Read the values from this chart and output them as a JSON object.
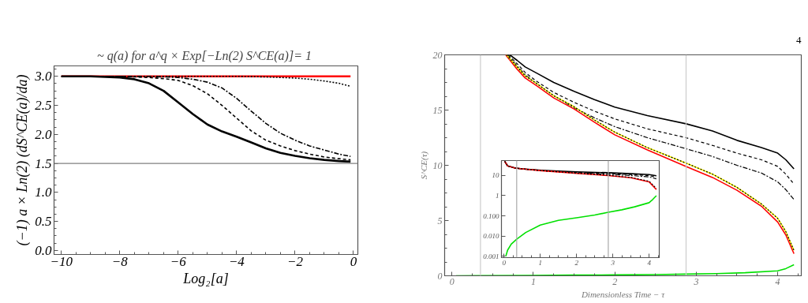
{
  "chart_data": [
    {
      "type": "line",
      "title": "~ q(a) for  a^q × Exp[−Ln(2) S^CE(a)]= 1",
      "xlabel": "Log₂[a]",
      "ylabel": "(−1) a × Ln(2) (dS^CE(a)/da)",
      "xlim": [
        -10.25,
        0.15
      ],
      "ylim": [
        -0.07,
        3.18
      ],
      "xticks": [
        {
          "value": -10,
          "label": "−10"
        },
        {
          "value": -8,
          "label": "−8"
        },
        {
          "value": -6,
          "label": "−6"
        },
        {
          "value": -4,
          "label": "−4"
        },
        {
          "value": -2,
          "label": "−2"
        },
        0
      ],
      "yticks": [
        {
          "value": 0,
          "label": "0.0"
        },
        0.5,
        {
          "value": 1,
          "label": "1.0"
        },
        1.5,
        {
          "value": 2,
          "label": "2.0"
        },
        2.5,
        {
          "value": 3,
          "label": "3.0"
        }
      ],
      "ref_lines": [
        {
          "axis": "y",
          "value": 1.5,
          "color": "#808080"
        }
      ],
      "series": [
        {
          "color": "#ff0000",
          "line_style": "solid",
          "x": [
            -10,
            -0.1
          ],
          "values": [
            3.0,
            3.0
          ]
        },
        {
          "color": "#000000",
          "line_style": "solid",
          "x": [
            -10,
            -9,
            -8,
            -7.5,
            -7,
            -6.5,
            -6,
            -5.5,
            -5,
            -4.5,
            -4,
            -3.5,
            -3,
            -2.5,
            -2,
            -1.5,
            -1,
            -0.5,
            -0.1
          ],
          "values": [
            3.0,
            3.0,
            2.98,
            2.95,
            2.88,
            2.75,
            2.55,
            2.35,
            2.17,
            2.05,
            1.96,
            1.86,
            1.76,
            1.68,
            1.63,
            1.59,
            1.56,
            1.54,
            1.53
          ]
        },
        {
          "color": "#000000",
          "line_style": "dashed",
          "x": [
            -10,
            -8,
            -7,
            -6.5,
            -6,
            -5.5,
            -5,
            -4.5,
            -4,
            -3.5,
            -3,
            -2.5,
            -2,
            -1.5,
            -1,
            -0.5,
            -0.1
          ],
          "values": [
            3.0,
            3.0,
            2.98,
            2.96,
            2.93,
            2.84,
            2.7,
            2.5,
            2.28,
            2.06,
            1.9,
            1.8,
            1.72,
            1.66,
            1.61,
            1.58,
            1.56
          ]
        },
        {
          "color": "#000000",
          "line_style": "dashdot",
          "x": [
            -10,
            -7,
            -6,
            -5.5,
            -5,
            -4.5,
            -4,
            -3.5,
            -3,
            -2.5,
            -2,
            -1.5,
            -1,
            -0.5,
            -0.1
          ],
          "values": [
            3.0,
            3.0,
            2.98,
            2.95,
            2.9,
            2.8,
            2.62,
            2.4,
            2.19,
            2.02,
            1.9,
            1.8,
            1.73,
            1.66,
            1.62
          ]
        },
        {
          "color": "#000000",
          "line_style": "dotted",
          "x": [
            -10,
            -4,
            -3,
            -2,
            -1.5,
            -1,
            -0.5,
            -0.1
          ],
          "values": [
            3.0,
            3.0,
            2.99,
            2.97,
            2.95,
            2.92,
            2.88,
            2.83
          ]
        }
      ]
    },
    {
      "type": "line",
      "xlabel": "Dimensionless Time − τ",
      "ylabel": "S^CE(τ)",
      "annotations": [
        "4"
      ],
      "xlim": [
        -0.09,
        4.29
      ],
      "ylim": [
        0,
        20
      ],
      "xticks": [
        0,
        1,
        2,
        3,
        4
      ],
      "yticks": [
        0,
        5,
        10,
        15,
        20
      ],
      "ref_lines": [
        {
          "axis": "x",
          "value": 0.35,
          "color": "#cccccc"
        },
        {
          "axis": "x",
          "value": 2.875,
          "color": "#cccccc"
        }
      ],
      "series": [
        {
          "color": "#000000",
          "line_style": "solid",
          "x": [
            0.71,
            0.8,
            0.9,
            1.04,
            1.25,
            1.5,
            1.75,
            2,
            2.4,
            2.875,
            3.2,
            3.5,
            3.8,
            4,
            4.1,
            4.2
          ],
          "values": [
            20,
            19.5,
            18.9,
            18.35,
            17.5,
            16.7,
            15.95,
            15.27,
            14.5,
            13.76,
            13.1,
            12.26,
            11.6,
            11.1,
            10.5,
            9.68
          ]
        },
        {
          "color": "#000000",
          "line_style": "dashed",
          "x": [
            0.69,
            0.8,
            0.9,
            1.04,
            1.25,
            1.5,
            1.75,
            2,
            2.4,
            2.875,
            3.2,
            3.5,
            3.8,
            4,
            4.1,
            4.2
          ],
          "values": [
            20,
            19.2,
            18.4,
            17.6,
            16.6,
            15.7,
            14.9,
            14.2,
            13.3,
            12.5,
            11.8,
            11.1,
            10.5,
            9.9,
            9.2,
            8.3
          ]
        },
        {
          "color": "#000000",
          "line_style": "dashdot",
          "x": [
            0.68,
            0.8,
            0.9,
            1.04,
            1.25,
            1.5,
            1.75,
            2,
            2.4,
            2.875,
            3.2,
            3.5,
            3.8,
            4,
            4.1,
            4.2
          ],
          "values": [
            20,
            19.0,
            18.2,
            17.4,
            16.3,
            15.2,
            14.3,
            13.5,
            12.5,
            11.5,
            10.8,
            10.0,
            9.3,
            8.5,
            7.8,
            6.9
          ]
        },
        {
          "color": "#ff0000",
          "line_style": "solid",
          "x": [
            0.66,
            0.8,
            0.9,
            1.04,
            1.25,
            1.5,
            1.75,
            2,
            2.4,
            2.875,
            3.2,
            3.5,
            3.8,
            4,
            4.1,
            4.2
          ],
          "values": [
            20,
            18.7,
            17.9,
            17.2,
            16.1,
            15.1,
            13.9,
            12.76,
            11.4,
            9.9,
            8.9,
            7.74,
            6.3,
            4.87,
            3.7,
            2.0
          ]
        },
        {
          "color": "#ffff00",
          "line_style": "solid",
          "x": [
            0.67,
            0.8,
            0.9,
            1.04,
            1.25,
            1.5,
            1.75,
            2,
            2.4,
            2.875,
            3.2,
            3.5,
            3.8,
            4,
            4.1,
            4.2
          ],
          "values": [
            20,
            18.9,
            18.1,
            17.4,
            16.3,
            15.3,
            14.1,
            13.0,
            11.6,
            10.2,
            9.2,
            8.0,
            6.5,
            5.2,
            4.0,
            2.3
          ]
        },
        {
          "color": "#000000",
          "line_style": "dotted",
          "x": [
            0.67,
            0.8,
            0.9,
            1.04,
            1.25,
            1.5,
            1.75,
            2,
            2.4,
            2.875,
            3.2,
            3.5,
            3.8,
            4,
            4.1,
            4.2
          ],
          "values": [
            20,
            18.9,
            18.1,
            17.4,
            16.3,
            15.3,
            14.1,
            13.0,
            11.6,
            10.2,
            9.2,
            8.0,
            6.5,
            5.2,
            4.0,
            2.3
          ]
        },
        {
          "color": "#00e000",
          "line_style": "solid",
          "x": [
            0.05,
            0.35,
            1,
            1.5,
            2,
            2.5,
            2.875,
            3.25,
            3.6,
            4,
            4.1,
            4.2
          ],
          "values": [
            0.001,
            0.007,
            0.035,
            0.06,
            0.08,
            0.11,
            0.15,
            0.2,
            0.28,
            0.45,
            0.65,
            1.0
          ]
        }
      ]
    },
    {
      "type": "line",
      "log": "y",
      "xlim": [
        -0.07,
        4.28
      ],
      "ylim": [
        0.00085,
        55
      ],
      "xticks": [
        0,
        1,
        2,
        3,
        4
      ],
      "yticks": [
        {
          "value": 0.001,
          "label": "0.001"
        },
        {
          "value": 0.01,
          "label": "0.010"
        },
        {
          "value": 0.1,
          "label": "0.100"
        },
        1,
        10
      ],
      "ref_lines": [
        {
          "axis": "x",
          "value": 0.35,
          "color": "#aaaaaa"
        },
        {
          "axis": "x",
          "value": 2.875,
          "color": "#aaaaaa"
        }
      ],
      "series": [
        {
          "color": "#000000",
          "line_style": "solid",
          "x": [
            0.02,
            0.1,
            0.3,
            0.5,
            1.04,
            1.5,
            2,
            2.875,
            3.5,
            4,
            4.2
          ],
          "values": [
            50,
            30,
            24,
            21.5,
            18.35,
            16.7,
            15.27,
            13.76,
            12.26,
            11.1,
            9.68
          ]
        },
        {
          "color": "#000000",
          "line_style": "dashed",
          "x": [
            0.02,
            0.1,
            0.3,
            0.5,
            1.04,
            1.5,
            2,
            2.875,
            3.5,
            4,
            4.2
          ],
          "values": [
            50,
            30,
            23.5,
            21.2,
            17.6,
            15.7,
            14.2,
            12.5,
            11.1,
            9.9,
            8.3
          ]
        },
        {
          "color": "#000000",
          "line_style": "dashdot",
          "x": [
            0.02,
            0.1,
            0.3,
            0.5,
            1.04,
            1.5,
            2,
            2.875,
            3.5,
            4,
            4.2
          ],
          "values": [
            50,
            30,
            23.4,
            21.1,
            17.4,
            15.2,
            13.5,
            11.5,
            10.0,
            8.5,
            6.9
          ]
        },
        {
          "color": "#ff0000",
          "line_style": "solid",
          "x": [
            0.02,
            0.1,
            0.3,
            0.5,
            1.04,
            1.5,
            2,
            2.875,
            3.5,
            4,
            4.2
          ],
          "values": [
            50,
            30,
            23.5,
            21.4,
            17.2,
            15.1,
            12.76,
            9.9,
            7.74,
            4.87,
            2.0
          ]
        },
        {
          "color": "#000000",
          "line_style": "dotted",
          "x": [
            0.02,
            0.1,
            0.3,
            0.5,
            1.04,
            1.5,
            2,
            2.875,
            3.5,
            4,
            4.2
          ],
          "values": [
            50,
            30,
            23.5,
            21.5,
            17.4,
            15.3,
            13.0,
            10.2,
            8.0,
            5.2,
            2.3
          ]
        },
        {
          "color": "#00e000",
          "line_style": "solid",
          "x": [
            0.05,
            0.1,
            0.2,
            0.35,
            0.6,
            1,
            1.5,
            2,
            2.5,
            2.875,
            3.25,
            3.6,
            4,
            4.1,
            4.2
          ],
          "values": [
            0.001,
            0.002,
            0.004,
            0.007,
            0.015,
            0.035,
            0.06,
            0.08,
            0.11,
            0.15,
            0.2,
            0.28,
            0.45,
            0.65,
            1.0
          ]
        }
      ]
    }
  ]
}
